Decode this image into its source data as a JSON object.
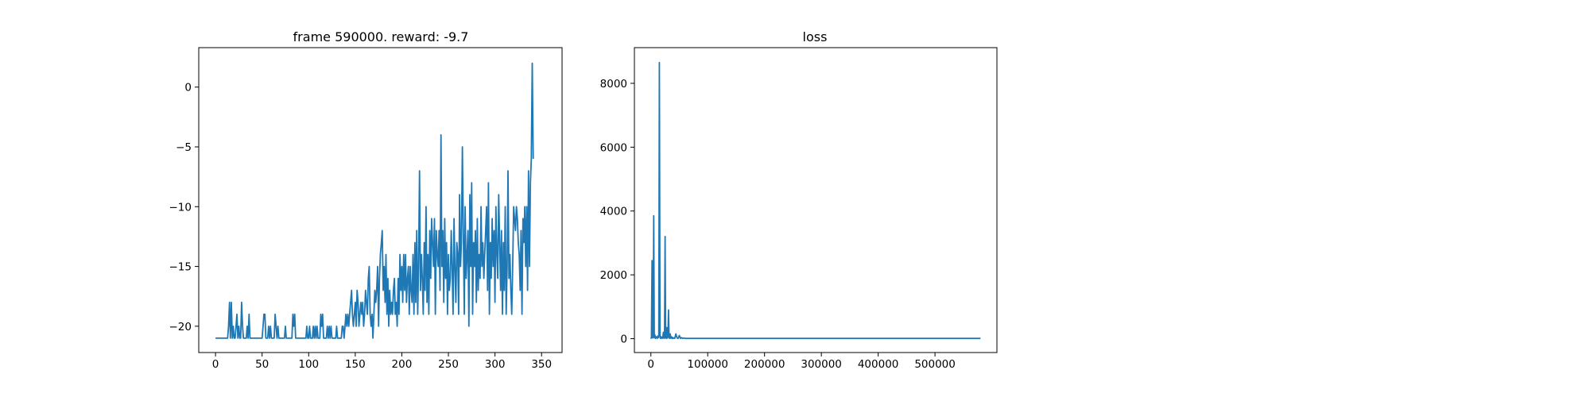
{
  "chart_data": [
    {
      "type": "line",
      "title": "frame 590000. reward: -9.7",
      "xlabel": "",
      "ylabel": "",
      "xlim": [
        -18,
        372
      ],
      "ylim": [
        -22.2,
        3.3
      ],
      "x_ticks": [
        0,
        50,
        100,
        150,
        200,
        250,
        300,
        350
      ],
      "y_ticks": [
        0,
        -5,
        -10,
        -15,
        -20
      ],
      "grid": false,
      "color": "#1f77b4",
      "series": [
        {
          "name": "",
          "x": "episode index (0..N)",
          "values": [
            -21,
            -21,
            -21,
            -21,
            -21,
            -21,
            -21,
            -21,
            -21,
            -21,
            -21,
            -21,
            -21,
            -21,
            -20,
            -18,
            -21,
            -18,
            -21,
            -20,
            -21,
            -21,
            -20,
            -19,
            -21,
            -20,
            -21,
            -21,
            -18,
            -20,
            -21,
            -21,
            -21,
            -21,
            -20,
            -21,
            -19,
            -21,
            -21,
            -21,
            -21,
            -21,
            -21,
            -21,
            -21,
            -21,
            -21,
            -21,
            -21,
            -21,
            -21,
            -20,
            -19,
            -19,
            -21,
            -21,
            -21,
            -20,
            -21,
            -20,
            -21,
            -21,
            -21,
            -21,
            -19,
            -20,
            -21,
            -20,
            -21,
            -21,
            -21,
            -21,
            -21,
            -21,
            -21,
            -20,
            -21,
            -21,
            -21,
            -21,
            -21,
            -21,
            -21,
            -19,
            -20,
            -19,
            -21,
            -21,
            -21,
            -21,
            -21,
            -21,
            -21,
            -21,
            -21,
            -21,
            -21,
            -21,
            -20,
            -21,
            -21,
            -20,
            -21,
            -21,
            -21,
            -20,
            -21,
            -20,
            -21,
            -20,
            -21,
            -21,
            -21,
            -19,
            -20,
            -19,
            -21,
            -21,
            -21,
            -21,
            -20,
            -21,
            -20,
            -21,
            -20,
            -21,
            -21,
            -21,
            -21,
            -21,
            -20,
            -21,
            -21,
            -21,
            -21,
            -21,
            -20,
            -20,
            -21,
            -20,
            -19,
            -20,
            -19,
            -20,
            -19,
            -18,
            -17,
            -19,
            -20,
            -19,
            -18,
            -20,
            -17,
            -18,
            -20,
            -19,
            -18,
            -19,
            -18,
            -20,
            -19,
            -17,
            -18,
            -19,
            -16,
            -15,
            -19,
            -20,
            -19,
            -21,
            -19,
            -17,
            -18,
            -17,
            -15,
            -20,
            -16,
            -14,
            -13,
            -12,
            -17,
            -15,
            -18,
            -14,
            -19,
            -16,
            -20,
            -17,
            -19,
            -18,
            -19,
            -17,
            -16,
            -19,
            -18,
            -20,
            -16,
            -19,
            -14,
            -17,
            -15,
            -18,
            -14,
            -17,
            -14,
            -18,
            -16,
            -15,
            -19,
            -15,
            -17,
            -18,
            -14,
            -19,
            -13,
            -18,
            -12,
            -19,
            -15,
            -7,
            -17,
            -14,
            -16,
            -19,
            -13,
            -17,
            -10,
            -18,
            -14,
            -19,
            -12,
            -16,
            -11,
            -13,
            -15,
            -11,
            -19,
            -12,
            -14,
            -15,
            -12,
            -17,
            -4,
            -15,
            -12,
            -18,
            -11,
            -16,
            -13,
            -19,
            -14,
            -17,
            -16,
            -12,
            -15,
            -19,
            -11,
            -15,
            -18,
            -13,
            -14,
            -19,
            -9,
            -15,
            -13,
            -5,
            -12,
            -19,
            -10,
            -16,
            -14,
            -12,
            -20,
            -9,
            -15,
            -8,
            -19,
            -13,
            -15,
            -12,
            -18,
            -11,
            -17,
            -14,
            -16,
            -10,
            -15,
            -13,
            -16,
            -14,
            -12,
            -10,
            -17,
            -8,
            -19,
            -13,
            -16,
            -11,
            -15,
            -12,
            -18,
            -10,
            -14,
            -16,
            -9,
            -13,
            -17,
            -12,
            -19,
            -13,
            -17,
            -10,
            -19,
            -15,
            -7,
            -16,
            -14,
            -17,
            -19,
            -15,
            -10,
            -11,
            -12,
            -10,
            -11,
            -13,
            -14,
            -17,
            -12,
            -19,
            -11,
            -13,
            -10,
            -15,
            -10,
            -17,
            -7,
            -15,
            -8,
            -6,
            2,
            -6
          ]
        }
      ]
    },
    {
      "type": "line",
      "title": "loss",
      "xlabel": "",
      "ylabel": "",
      "xlim": [
        -29000,
        609000
      ],
      "ylim": [
        -434,
        9118
      ],
      "x_ticks": [
        0,
        100000,
        200000,
        300000,
        400000,
        500000
      ],
      "y_ticks": [
        0,
        2000,
        4000,
        6000,
        8000
      ],
      "grid": false,
      "color": "#1f77b4",
      "series": [
        {
          "name": "",
          "x": [
            0,
            1000,
            2000,
            3000,
            4000,
            5000,
            6000,
            7000,
            8000,
            9000,
            10000,
            11000,
            12000,
            13000,
            14000,
            15000,
            16000,
            17000,
            18000,
            19000,
            20000,
            21000,
            22000,
            23000,
            24000,
            25000,
            26000,
            27000,
            28000,
            29000,
            30000,
            31000,
            32000,
            33000,
            34000,
            35000,
            36000,
            37000,
            38000,
            39000,
            40000,
            42000,
            44000,
            46000,
            48000,
            50000,
            52000,
            54000,
            56000,
            58000,
            60000,
            62000,
            65000,
            70000,
            75000,
            80000,
            90000,
            100000,
            110000,
            580000
          ],
          "values": [
            0,
            50,
            2450,
            20,
            80,
            3850,
            30,
            120,
            10,
            60,
            40,
            10,
            80,
            30,
            120,
            8650,
            40,
            10,
            60,
            30,
            10,
            50,
            200,
            10,
            20,
            3200,
            40,
            10,
            350,
            20,
            80,
            900,
            30,
            10,
            150,
            20,
            60,
            10,
            40,
            10,
            20,
            10,
            150,
            20,
            10,
            100,
            10,
            30,
            10,
            20,
            10,
            10,
            10,
            10,
            10,
            10,
            10,
            10,
            10,
            10
          ]
        }
      ]
    }
  ]
}
